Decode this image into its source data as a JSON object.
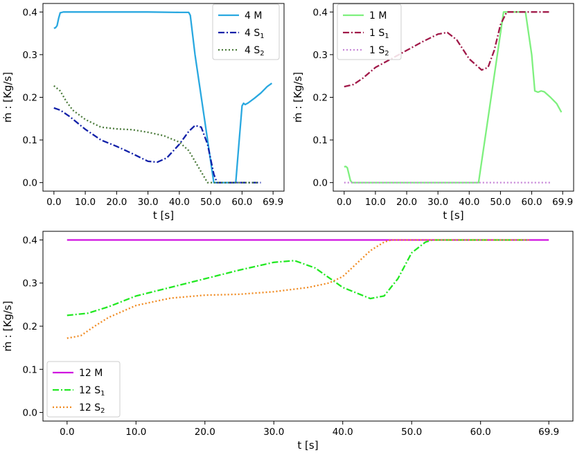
{
  "chart_data": [
    {
      "type": "line",
      "ylabel": "ṁ : [Kg/s]",
      "xlabel": "t [s]",
      "xticks": [
        "0.0",
        "10.0",
        "20.0",
        "30.0",
        "40.0",
        "50.0",
        "60.0",
        "69.9"
      ],
      "xtick_values": [
        0,
        10,
        20,
        30,
        40,
        50,
        60,
        69.9
      ],
      "yticks": [
        "0.0",
        "0.1",
        "0.2",
        "0.3",
        "0.4"
      ],
      "xlim": [
        -3.5,
        73.4
      ],
      "ylim": [
        -0.02,
        0.42
      ],
      "legend": "top-right",
      "series": [
        {
          "name": "4 M",
          "sub": "",
          "style": "solid",
          "color": "#29a8e0",
          "x": [
            0,
            0.5,
            1,
            1.5,
            2,
            3,
            5,
            10,
            20,
            30,
            40,
            43,
            43.5,
            45,
            48,
            50,
            51,
            52,
            55,
            57,
            58,
            59,
            60,
            60.5,
            61,
            62,
            64,
            66,
            68,
            69.5
          ],
          "y": [
            0.362,
            0.363,
            0.368,
            0.385,
            0.398,
            0.4,
            0.4,
            0.4,
            0.4,
            0.4,
            0.399,
            0.399,
            0.392,
            0.3,
            0.15,
            0.05,
            0.0,
            0.0,
            0.0,
            0.0,
            0.0,
            0.09,
            0.18,
            0.186,
            0.183,
            0.187,
            0.198,
            0.21,
            0.225,
            0.233
          ]
        },
        {
          "name": "4 S",
          "sub": "1",
          "style": "dashdot",
          "color": "#1020a8",
          "x": [
            0,
            2,
            5,
            10,
            15,
            20,
            25,
            30,
            33,
            36,
            40,
            43,
            45,
            47,
            49,
            51,
            52,
            55,
            58,
            62,
            66
          ],
          "y": [
            0.175,
            0.17,
            0.155,
            0.125,
            0.1,
            0.085,
            0.068,
            0.05,
            0.048,
            0.058,
            0.09,
            0.12,
            0.134,
            0.13,
            0.09,
            0.02,
            0.0,
            0.0,
            0.0,
            0.0,
            0.0
          ]
        },
        {
          "name": "4 S",
          "sub": "2",
          "style": "dotted",
          "color": "#4a7a3a",
          "x": [
            0,
            2,
            4,
            6,
            10,
            15,
            20,
            25,
            30,
            35,
            40,
            43,
            45,
            47,
            49,
            50,
            52,
            55,
            60,
            65
          ],
          "y": [
            0.227,
            0.215,
            0.19,
            0.17,
            0.148,
            0.13,
            0.126,
            0.124,
            0.118,
            0.11,
            0.095,
            0.075,
            0.05,
            0.025,
            0.0,
            0.0,
            0.0,
            0.0,
            0.0,
            0.0
          ]
        }
      ]
    },
    {
      "type": "line",
      "ylabel": "ṁ : [Kg/s]",
      "xlabel": "t [s]",
      "xticks": [
        "0.0",
        "10.0",
        "20.0",
        "30.0",
        "40.0",
        "50.0",
        "60.0",
        "69.9"
      ],
      "xtick_values": [
        0,
        10,
        20,
        30,
        40,
        50,
        60,
        69.9
      ],
      "yticks": [
        "0.0",
        "0.1",
        "0.2",
        "0.3",
        "0.4"
      ],
      "xlim": [
        -3.5,
        73.4
      ],
      "ylim": [
        -0.02,
        0.42
      ],
      "legend": "top-left",
      "series": [
        {
          "name": "1 M",
          "sub": "",
          "style": "solid",
          "color": "#7ef07e",
          "x": [
            0,
            0.5,
            1,
            1.5,
            2,
            2.5,
            5,
            10,
            20,
            30,
            40,
            43,
            44,
            46,
            48,
            50,
            51,
            52,
            54,
            56,
            58,
            60,
            61,
            62,
            63,
            64,
            66,
            68,
            69.5
          ],
          "y": [
            0.037,
            0.038,
            0.035,
            0.02,
            0.005,
            0.0,
            0.0,
            0.0,
            0.0,
            0.0,
            0.0,
            0.0,
            0.05,
            0.15,
            0.25,
            0.35,
            0.4,
            0.4,
            0.4,
            0.4,
            0.4,
            0.3,
            0.215,
            0.212,
            0.215,
            0.213,
            0.2,
            0.185,
            0.165
          ]
        },
        {
          "name": "1 S",
          "sub": "1",
          "style": "dashdot",
          "color": "#a01848",
          "x": [
            0,
            3,
            6,
            10,
            15,
            20,
            25,
            30,
            33,
            36,
            40,
            44,
            46,
            48,
            50,
            52,
            55,
            60,
            66
          ],
          "y": [
            0.225,
            0.23,
            0.245,
            0.27,
            0.29,
            0.31,
            0.33,
            0.348,
            0.352,
            0.335,
            0.29,
            0.264,
            0.27,
            0.31,
            0.37,
            0.4,
            0.4,
            0.4,
            0.4
          ]
        },
        {
          "name": "1 S",
          "sub": "2",
          "style": "dotted",
          "color": "#c888d8",
          "x": [
            0,
            66
          ],
          "y": [
            0.0,
            0.0
          ]
        }
      ]
    },
    {
      "type": "line",
      "ylabel": "ṁ : [Kg/s]",
      "xlabel": "t [s]",
      "xticks": [
        "0.0",
        "10.0",
        "20.0",
        "30.0",
        "40.0",
        "50.0",
        "60.0",
        "69.9"
      ],
      "xtick_values": [
        0,
        10,
        20,
        30,
        40,
        50,
        60,
        69.9
      ],
      "yticks": [
        "0.0",
        "0.1",
        "0.2",
        "0.3",
        "0.4"
      ],
      "xlim": [
        -3.5,
        73.4
      ],
      "ylim": [
        -0.02,
        0.42
      ],
      "legend": "bottom-left",
      "series": [
        {
          "name": "12 M",
          "sub": "",
          "style": "solid",
          "color": "#d010e0",
          "x": [
            0,
            69.9
          ],
          "y": [
            0.4,
            0.4
          ]
        },
        {
          "name": "12 S",
          "sub": "1",
          "style": "dashdot",
          "color": "#22e822",
          "x": [
            0,
            3,
            6,
            10,
            15,
            20,
            25,
            30,
            33,
            36,
            40,
            44,
            46,
            48,
            50,
            52,
            53,
            55,
            60,
            67
          ],
          "y": [
            0.225,
            0.23,
            0.245,
            0.27,
            0.29,
            0.31,
            0.33,
            0.348,
            0.352,
            0.335,
            0.29,
            0.264,
            0.27,
            0.31,
            0.37,
            0.395,
            0.4,
            0.4,
            0.4,
            0.4
          ]
        },
        {
          "name": "12 S",
          "sub": "2",
          "style": "dotted",
          "color": "#f08a20",
          "x": [
            0,
            2,
            4,
            6,
            10,
            15,
            20,
            25,
            30,
            35,
            38,
            40,
            42,
            44,
            46,
            47,
            50,
            55,
            60,
            67
          ],
          "y": [
            0.172,
            0.178,
            0.2,
            0.22,
            0.248,
            0.265,
            0.272,
            0.274,
            0.28,
            0.29,
            0.3,
            0.315,
            0.345,
            0.375,
            0.395,
            0.4,
            0.4,
            0.4,
            0.4,
            0.4
          ]
        }
      ]
    }
  ]
}
